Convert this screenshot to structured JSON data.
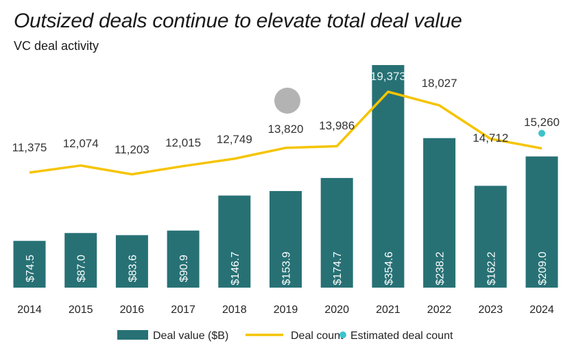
{
  "chart_data": {
    "type": "bar",
    "title": "Outsized deals continue to elevate total deal value",
    "subtitle": "VC deal activity",
    "categories": [
      "2014",
      "2015",
      "2016",
      "2017",
      "2018",
      "2019",
      "2020",
      "2021",
      "2022",
      "2023",
      "2024"
    ],
    "series": [
      {
        "name": "Deal value ($B)",
        "type": "bar",
        "color": "#277175",
        "values": [
          74.5,
          87.0,
          83.6,
          90.9,
          146.7,
          153.9,
          174.7,
          354.6,
          238.2,
          162.2,
          209.0
        ],
        "labels": [
          "$74.5",
          "$87.0",
          "$83.6",
          "$90.9",
          "$146.7",
          "$153.9",
          "$174.7",
          "$354.6",
          "$238.2",
          "$162.2",
          "$209.0"
        ]
      },
      {
        "name": "Deal count",
        "type": "line",
        "color": "#F5C400",
        "values": [
          11375,
          12074,
          11203,
          12015,
          12749,
          13820,
          13986,
          19373,
          18027,
          14712,
          13770
        ],
        "labels": [
          "11,375",
          "12,074",
          "11,203",
          "12,015",
          "12,749",
          "13,820",
          "13,986",
          "19,373",
          "18,027",
          "14,712",
          ""
        ]
      },
      {
        "name": "Estimated deal count",
        "type": "scatter",
        "color": "#3CC3CB",
        "x": "2024",
        "value": 15260,
        "label": "15,260"
      }
    ],
    "legend": [
      "Deal value ($B)",
      "Deal count",
      "Estimated deal count"
    ],
    "legend_position": "bottom",
    "grid": false
  }
}
